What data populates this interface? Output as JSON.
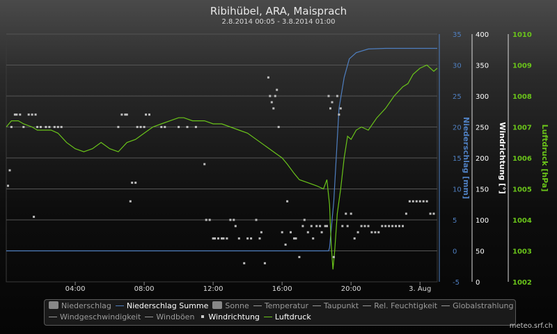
{
  "chart_data": {
    "type": "line",
    "title": "Ribihübel, ARA, Maisprach",
    "subtitle": "2.8.2014 00:05 - 3.8.2014 01:00",
    "x_tick_labels": [
      "04:00",
      "08:00",
      "12:00",
      "16:00",
      "20:00",
      "3. Aug"
    ],
    "x_tick_hours": [
      4,
      8,
      12,
      16,
      20,
      24
    ],
    "x_range_hours": [
      0,
      25
    ],
    "axes": [
      {
        "id": "niederschlag",
        "label": "Niederschlag [mm]",
        "color": "#4f7fc0",
        "range": [
          -5,
          35
        ],
        "ticks": [
          -5,
          0,
          5,
          10,
          15,
          20,
          25,
          30,
          35
        ]
      },
      {
        "id": "windrichtung",
        "label": "Windrichtung [°]",
        "color": "#ffffff",
        "range": [
          0,
          400
        ],
        "ticks": [
          0,
          50,
          100,
          150,
          200,
          250,
          300,
          350,
          400
        ]
      },
      {
        "id": "luftdruck",
        "label": "Luftdruck [hPa]",
        "color": "#6ac41a",
        "range": [
          1002,
          1010
        ],
        "ticks": [
          1002,
          1003,
          1004,
          1005,
          1006,
          1007,
          1008,
          1009,
          1010
        ]
      }
    ],
    "grid": true,
    "legend_position": "bottom",
    "legend": [
      {
        "name": "Niederschlag",
        "symbol": "box",
        "active": false
      },
      {
        "name": "Niederschlag Summe",
        "symbol": "line",
        "active": true
      },
      {
        "name": "Sonne",
        "symbol": "box",
        "active": false
      },
      {
        "name": "Temperatur",
        "symbol": "line",
        "active": false
      },
      {
        "name": "Taupunkt",
        "symbol": "line",
        "active": false
      },
      {
        "name": "Rel. Feuchtigkeit",
        "symbol": "line",
        "active": false
      },
      {
        "name": "Globalstrahlung",
        "symbol": "line",
        "active": false
      },
      {
        "name": "Windgeschwindigkeit",
        "symbol": "line",
        "active": false
      },
      {
        "name": "Windböen",
        "symbol": "line",
        "active": false
      },
      {
        "name": "Windrichtung",
        "symbol": "dot",
        "active": true
      },
      {
        "name": "Luftdruck",
        "symbol": "line",
        "active": true
      }
    ],
    "series": [
      {
        "name": "Niederschlag Summe",
        "axis": "niederschlag",
        "color": "#4f7fc0",
        "style": "line",
        "x": [
          0,
          18.7,
          18.75,
          19.0,
          19.3,
          19.6,
          19.9,
          20.3,
          21.0,
          22.0,
          23.0,
          25
        ],
        "y": [
          0,
          0,
          0.5,
          8,
          23,
          28,
          31,
          32,
          32.6,
          32.7,
          32.7,
          32.7
        ]
      },
      {
        "name": "Luftdruck",
        "axis": "luftdruck",
        "color": "#6ac41a",
        "style": "line",
        "x": [
          0,
          0.3,
          0.7,
          1.0,
          1.5,
          1.8,
          2.2,
          2.6,
          3.0,
          3.5,
          4.0,
          4.5,
          5.0,
          5.5,
          6.0,
          6.5,
          7.0,
          7.5,
          8.0,
          8.5,
          9.0,
          9.5,
          10.0,
          10.3,
          10.8,
          11.5,
          12.0,
          12.5,
          13.0,
          13.5,
          14.0,
          14.5,
          15.0,
          15.5,
          16.0,
          16.3,
          16.7,
          17.0,
          17.5,
          18.0,
          18.4,
          18.6,
          18.75,
          18.85,
          18.95,
          19.05,
          19.2,
          19.4,
          19.6,
          19.8,
          20.0,
          20.3,
          20.6,
          21.0,
          21.5,
          22.0,
          22.5,
          23.0,
          23.3,
          23.6,
          24.0,
          24.4,
          24.8,
          25
        ],
        "y": [
          1007.0,
          1007.2,
          1007.2,
          1007.1,
          1007.0,
          1006.9,
          1006.9,
          1006.9,
          1006.8,
          1006.5,
          1006.3,
          1006.2,
          1006.3,
          1006.5,
          1006.3,
          1006.2,
          1006.5,
          1006.6,
          1006.8,
          1007.0,
          1007.1,
          1007.2,
          1007.3,
          1007.3,
          1007.2,
          1007.2,
          1007.1,
          1007.1,
          1007.0,
          1006.9,
          1006.8,
          1006.6,
          1006.4,
          1006.2,
          1006.0,
          1005.8,
          1005.5,
          1005.3,
          1005.2,
          1005.1,
          1005.0,
          1005.3,
          1004.5,
          1003.2,
          1002.4,
          1003.0,
          1004.2,
          1005.0,
          1006.0,
          1006.7,
          1006.6,
          1006.9,
          1007.0,
          1006.9,
          1007.3,
          1007.6,
          1008.0,
          1008.3,
          1008.4,
          1008.7,
          1008.9,
          1009.0,
          1008.8,
          1008.9
        ]
      },
      {
        "name": "Windrichtung",
        "axis": "windrichtung",
        "color": "#bdbdbd",
        "style": "dots",
        "points": [
          [
            0.1,
            155
          ],
          [
            0.2,
            180
          ],
          [
            0.3,
            250
          ],
          [
            0.5,
            270
          ],
          [
            0.6,
            270
          ],
          [
            0.8,
            270
          ],
          [
            1.0,
            250
          ],
          [
            1.3,
            270
          ],
          [
            1.5,
            270
          ],
          [
            1.6,
            105
          ],
          [
            1.7,
            270
          ],
          [
            1.8,
            250
          ],
          [
            2.0,
            250
          ],
          [
            2.3,
            250
          ],
          [
            2.5,
            250
          ],
          [
            2.8,
            250
          ],
          [
            3.0,
            250
          ],
          [
            3.2,
            250
          ],
          [
            6.5,
            250
          ],
          [
            6.7,
            270
          ],
          [
            6.9,
            270
          ],
          [
            7.0,
            270
          ],
          [
            7.2,
            130
          ],
          [
            7.3,
            160
          ],
          [
            7.5,
            160
          ],
          [
            7.6,
            250
          ],
          [
            7.8,
            250
          ],
          [
            8.0,
            250
          ],
          [
            8.1,
            270
          ],
          [
            8.3,
            270
          ],
          [
            9.0,
            250
          ],
          [
            9.2,
            250
          ],
          [
            10.0,
            250
          ],
          [
            10.5,
            250
          ],
          [
            11.0,
            250
          ],
          [
            11.5,
            190
          ],
          [
            11.6,
            100
          ],
          [
            11.8,
            100
          ],
          [
            12.0,
            70
          ],
          [
            12.1,
            70
          ],
          [
            12.3,
            70
          ],
          [
            12.5,
            70
          ],
          [
            12.6,
            70
          ],
          [
            12.8,
            70
          ],
          [
            13.0,
            100
          ],
          [
            13.2,
            100
          ],
          [
            13.3,
            90
          ],
          [
            13.5,
            70
          ],
          [
            13.8,
            30
          ],
          [
            14.0,
            70
          ],
          [
            14.2,
            70
          ],
          [
            14.5,
            100
          ],
          [
            14.7,
            70
          ],
          [
            14.8,
            80
          ],
          [
            15.0,
            30
          ],
          [
            15.2,
            330
          ],
          [
            15.3,
            300
          ],
          [
            15.4,
            290
          ],
          [
            15.5,
            280
          ],
          [
            15.6,
            300
          ],
          [
            15.7,
            310
          ],
          [
            15.8,
            250
          ],
          [
            16.0,
            80
          ],
          [
            16.2,
            60
          ],
          [
            16.3,
            130
          ],
          [
            16.5,
            80
          ],
          [
            16.7,
            70
          ],
          [
            16.8,
            70
          ],
          [
            17.0,
            40
          ],
          [
            17.2,
            90
          ],
          [
            17.3,
            100
          ],
          [
            17.5,
            80
          ],
          [
            17.7,
            90
          ],
          [
            17.8,
            70
          ],
          [
            18.0,
            90
          ],
          [
            18.2,
            90
          ],
          [
            18.3,
            80
          ],
          [
            18.5,
            90
          ],
          [
            18.6,
            90
          ],
          [
            18.7,
            300
          ],
          [
            18.8,
            280
          ],
          [
            18.9,
            290
          ],
          [
            19.0,
            40
          ],
          [
            19.2,
            300
          ],
          [
            19.3,
            270
          ],
          [
            19.4,
            280
          ],
          [
            19.5,
            90
          ],
          [
            19.7,
            110
          ],
          [
            19.8,
            90
          ],
          [
            20.0,
            110
          ],
          [
            20.2,
            70
          ],
          [
            20.4,
            80
          ],
          [
            20.6,
            90
          ],
          [
            20.8,
            90
          ],
          [
            21.0,
            90
          ],
          [
            21.2,
            80
          ],
          [
            21.4,
            80
          ],
          [
            21.6,
            80
          ],
          [
            21.8,
            90
          ],
          [
            22.0,
            90
          ],
          [
            22.2,
            90
          ],
          [
            22.4,
            90
          ],
          [
            22.6,
            90
          ],
          [
            22.8,
            90
          ],
          [
            23.0,
            90
          ],
          [
            23.2,
            110
          ],
          [
            23.4,
            130
          ],
          [
            23.6,
            130
          ],
          [
            23.8,
            130
          ],
          [
            24.0,
            130
          ],
          [
            24.2,
            130
          ],
          [
            24.4,
            130
          ],
          [
            24.6,
            110
          ],
          [
            24.8,
            110
          ]
        ]
      }
    ]
  },
  "footer": {
    "brand": "meteo.srf.ch"
  }
}
